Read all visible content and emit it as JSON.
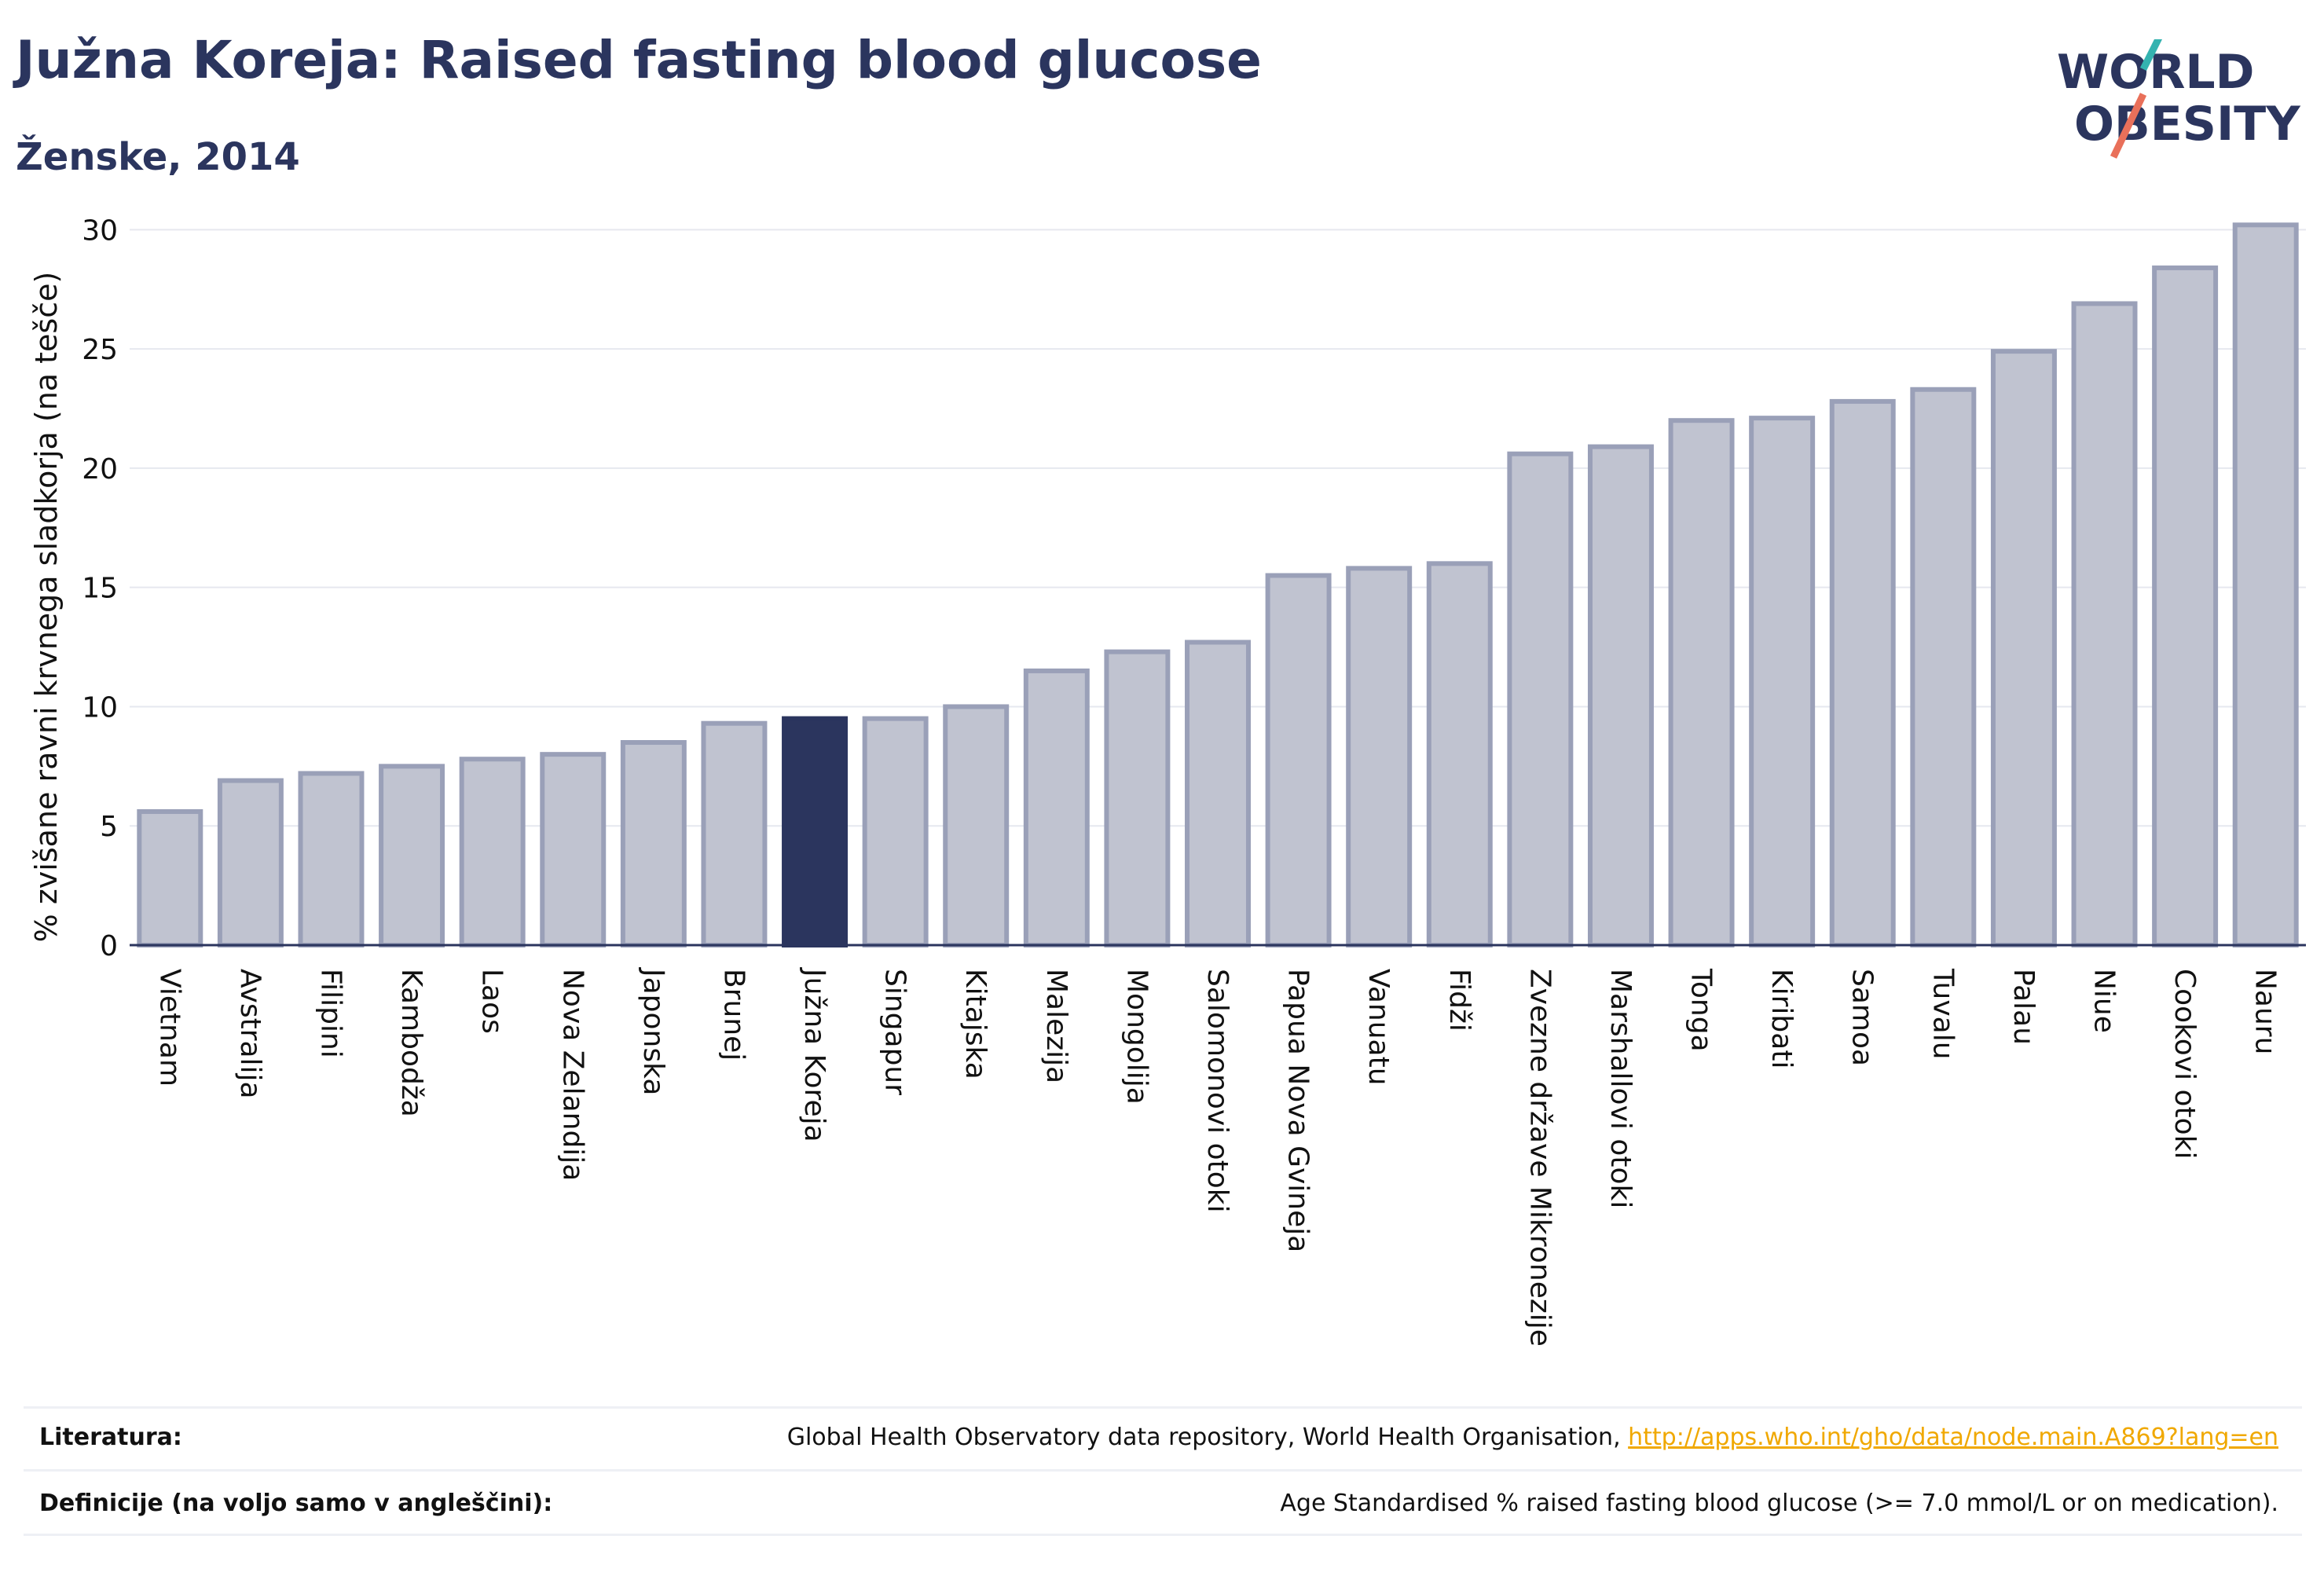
{
  "header": {
    "title": "Južna Koreja: Raised fasting blood glucose",
    "subtitle": "Ženske, 2014"
  },
  "logo": {
    "line1": "WORLD",
    "line2": "OBESITY",
    "slash_colors": [
      "#34b3b0",
      "#e9705a"
    ]
  },
  "colors": {
    "bar": "#c0c3d0",
    "bar_border": "#9aa0b8",
    "highlight": "#2b355e",
    "grid": "#e6e8ef",
    "text": "#2b355e"
  },
  "chart_data": {
    "type": "bar",
    "ylabel": "% zvišane ravni krvnega sladkorja (na tešče)",
    "ylim": [
      0,
      31
    ],
    "yticks": [
      0,
      5,
      10,
      15,
      20,
      25,
      30
    ],
    "highlight": "Južna Koreja",
    "categories": [
      "Vietnam",
      "Avstralija",
      "Filipini",
      "Kambodža",
      "Laos",
      "Nova Zelandija",
      "Japonska",
      "Brunej",
      "Južna Koreja",
      "Singapur",
      "Kitajska",
      "Malezija",
      "Mongolija",
      "Salomonovi otoki",
      "Papua Nova Gvineja",
      "Vanuatu",
      "Fidži",
      "Zvezne države Mikronezije",
      "Marshallovi otoki",
      "Tonga",
      "Kiribati",
      "Samoa",
      "Tuvalu",
      "Palau",
      "Niue",
      "Cookovi otoki",
      "Nauru"
    ],
    "values": [
      5.6,
      6.9,
      7.2,
      7.5,
      7.8,
      8.0,
      8.5,
      9.3,
      9.5,
      9.5,
      10.0,
      11.5,
      12.3,
      12.7,
      15.5,
      15.8,
      16.0,
      20.6,
      20.9,
      22.0,
      22.1,
      22.8,
      23.3,
      24.9,
      26.9,
      28.4,
      30.2
    ]
  },
  "footer": {
    "literature_label": "Literatura:",
    "literature_text": "Global Health Observatory data repository, World Health Organisation, ",
    "literature_link": "http://apps.who.int/gho/data/node.main.A869?lang=en",
    "definitions_label": "Definicije (na voljo samo v angleščini):",
    "definitions_text": "Age Standardised % raised fasting blood glucose (>= 7.0 mmol/L or on medication)."
  }
}
